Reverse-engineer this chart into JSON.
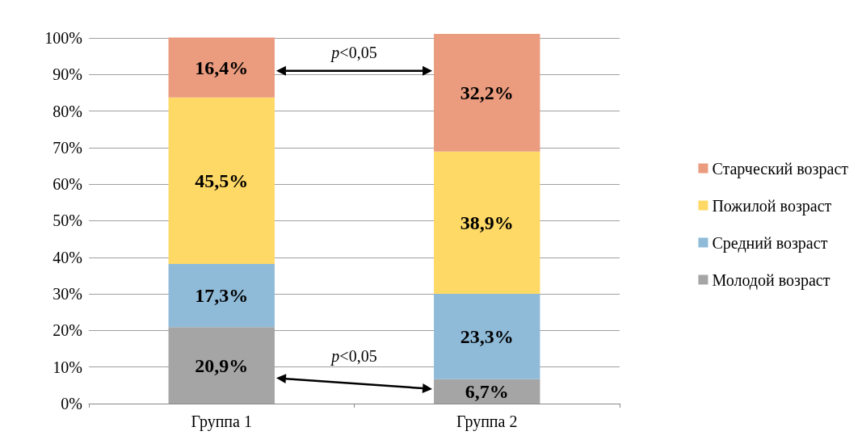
{
  "chart_data": {
    "type": "bar",
    "stacked": true,
    "categories": [
      "Группа 1",
      "Группа 2"
    ],
    "series": [
      {
        "name": "Молодой возраст",
        "color": "#a5a5a5",
        "values": [
          20.9,
          6.7
        ],
        "value_labels": [
          "20,9%",
          "6,7%"
        ]
      },
      {
        "name": "Средний возраст",
        "color": "#8fbbd9",
        "values": [
          17.3,
          23.3
        ],
        "value_labels": [
          "17,3%",
          "23,3%"
        ]
      },
      {
        "name": "Пожилой возраст",
        "color": "#ffd966",
        "values": [
          45.5,
          38.9
        ],
        "value_labels": [
          "45,5%",
          "38,9%"
        ]
      },
      {
        "name": "Старческий возраст",
        "color": "#eb9b7e",
        "values": [
          16.4,
          32.2
        ],
        "value_labels": [
          "16,4%",
          "32,2%"
        ]
      }
    ],
    "ylim": [
      0,
      101.1
    ],
    "yticks": [
      {
        "value": 0,
        "label": "0%"
      },
      {
        "value": 10,
        "label": "10%"
      },
      {
        "value": 20,
        "label": "20%"
      },
      {
        "value": 30,
        "label": "30%"
      },
      {
        "value": 40,
        "label": "40%"
      },
      {
        "value": 50,
        "label": "50%"
      },
      {
        "value": 60,
        "label": "60%"
      },
      {
        "value": 70,
        "label": "70%"
      },
      {
        "value": 80,
        "label": "80%"
      },
      {
        "value": 90,
        "label": "90%"
      },
      {
        "value": 100,
        "label": "100%"
      }
    ],
    "grid": "y",
    "legend": "right",
    "annotations": [
      "p<0,05",
      "p<0,05"
    ]
  }
}
